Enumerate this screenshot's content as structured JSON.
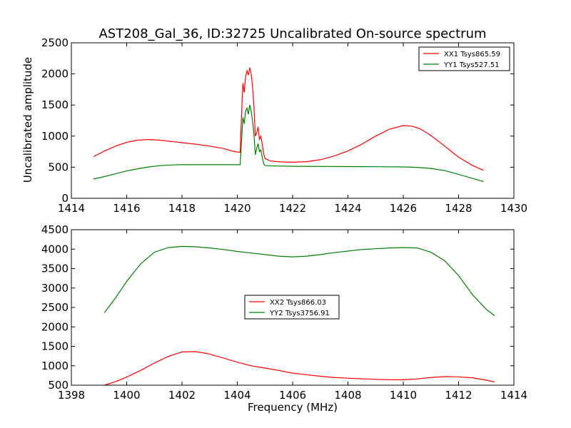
{
  "title": "AST208_Gal_36, ID:32725 Uncalibrated On-source spectrum",
  "ylabel": "Uncalibrated amplitude",
  "xlabel": "Frequency (MHz)",
  "colors": {
    "red": "#ff0000",
    "green": "#008000"
  },
  "chart_data": [
    {
      "type": "line",
      "title": "AST208_Gal_36, ID:32725 Uncalibrated On-source spectrum",
      "xlabel": "",
      "ylabel": "Uncalibrated amplitude",
      "xlim": [
        1414,
        1430
      ],
      "ylim": [
        0,
        2500
      ],
      "xticks": [
        1414,
        1416,
        1418,
        1420,
        1422,
        1424,
        1426,
        1428,
        1430
      ],
      "yticks": [
        0,
        500,
        1000,
        1500,
        2000,
        2500
      ],
      "grid": false,
      "legend": "top-right",
      "series": [
        {
          "name": "XX1 Tsys865.59",
          "color": "#ff0000",
          "x": [
            1414.8,
            1415.2,
            1415.6,
            1416.0,
            1416.4,
            1416.8,
            1417.2,
            1417.6,
            1418.0,
            1418.5,
            1419.0,
            1419.5,
            1419.9,
            1420.1,
            1420.15,
            1420.2,
            1420.25,
            1420.3,
            1420.35,
            1420.4,
            1420.45,
            1420.5,
            1420.55,
            1420.6,
            1420.65,
            1420.7,
            1420.75,
            1420.8,
            1420.85,
            1420.9,
            1420.95,
            1421.0,
            1421.2,
            1421.6,
            1422.0,
            1422.5,
            1423.0,
            1423.5,
            1424.0,
            1424.5,
            1425.0,
            1425.5,
            1426.0,
            1426.3,
            1426.6,
            1427.0,
            1427.5,
            1428.0,
            1428.5,
            1428.9
          ],
          "y": [
            670,
            760,
            840,
            900,
            935,
            945,
            935,
            915,
            895,
            870,
            840,
            800,
            750,
            740,
            1300,
            1850,
            1700,
            1950,
            2050,
            1980,
            2100,
            2000,
            1800,
            1500,
            1000,
            1050,
            1150,
            950,
            1000,
            880,
            720,
            640,
            600,
            585,
            580,
            590,
            620,
            680,
            760,
            870,
            1000,
            1110,
            1170,
            1160,
            1120,
            1010,
            840,
            660,
            530,
            450
          ]
        },
        {
          "name": "YY1 Tsys527.51",
          "color": "#008000",
          "x": [
            1414.8,
            1415.2,
            1415.6,
            1416.0,
            1416.4,
            1416.8,
            1417.2,
            1417.6,
            1418.0,
            1418.5,
            1419.0,
            1419.5,
            1419.9,
            1420.1,
            1420.15,
            1420.2,
            1420.25,
            1420.3,
            1420.35,
            1420.4,
            1420.45,
            1420.5,
            1420.55,
            1420.6,
            1420.65,
            1420.7,
            1420.75,
            1420.8,
            1420.85,
            1420.9,
            1420.95,
            1421.0,
            1421.4,
            1422.0,
            1423.0,
            1424.0,
            1425.0,
            1426.0,
            1426.5,
            1427.0,
            1427.5,
            1428.0,
            1428.5,
            1428.9
          ],
          "y": [
            310,
            350,
            395,
            440,
            475,
            505,
            525,
            535,
            540,
            540,
            540,
            540,
            540,
            540,
            900,
            1300,
            1200,
            1400,
            1450,
            1350,
            1500,
            1400,
            1250,
            1050,
            700,
            800,
            880,
            750,
            780,
            660,
            560,
            525,
            520,
            515,
            512,
            510,
            508,
            505,
            498,
            480,
            445,
            385,
            320,
            270
          ]
        }
      ]
    },
    {
      "type": "line",
      "title": "",
      "xlabel": "Frequency (MHz)",
      "ylabel": "",
      "xlim": [
        1398,
        1414
      ],
      "ylim": [
        500,
        4500
      ],
      "xticks": [
        1398,
        1400,
        1402,
        1404,
        1406,
        1408,
        1410,
        1412,
        1414
      ],
      "yticks": [
        500,
        1000,
        1500,
        2000,
        2500,
        3000,
        3500,
        4000,
        4500
      ],
      "grid": false,
      "legend": "center",
      "series": [
        {
          "name": "XX2 Tsys866.03",
          "color": "#ff0000",
          "x": [
            1399.2,
            1399.6,
            1400.0,
            1400.5,
            1401.0,
            1401.5,
            1402.0,
            1402.5,
            1403.0,
            1403.5,
            1404.0,
            1404.5,
            1405.0,
            1405.5,
            1406.0,
            1406.5,
            1407.0,
            1407.5,
            1408.0,
            1408.5,
            1409.0,
            1409.5,
            1410.0,
            1410.5,
            1411.0,
            1411.5,
            1412.0,
            1412.5,
            1413.0,
            1413.3
          ],
          "y": [
            500,
            590,
            710,
            880,
            1070,
            1240,
            1355,
            1365,
            1300,
            1200,
            1090,
            1000,
            940,
            880,
            810,
            770,
            730,
            700,
            680,
            665,
            650,
            640,
            640,
            660,
            700,
            720,
            715,
            690,
            630,
            580
          ]
        },
        {
          "name": "YY2 Tsys3756.91",
          "color": "#008000",
          "x": [
            1399.2,
            1399.6,
            1400.0,
            1400.5,
            1401.0,
            1401.5,
            1402.0,
            1402.5,
            1403.0,
            1403.5,
            1404.0,
            1404.5,
            1405.0,
            1405.5,
            1406.0,
            1406.5,
            1407.0,
            1407.5,
            1408.0,
            1408.5,
            1409.0,
            1409.5,
            1410.0,
            1410.5,
            1411.0,
            1411.5,
            1412.0,
            1412.5,
            1413.0,
            1413.3
          ],
          "y": [
            2370,
            2750,
            3170,
            3620,
            3920,
            4040,
            4070,
            4060,
            4030,
            3990,
            3940,
            3900,
            3860,
            3820,
            3800,
            3820,
            3860,
            3910,
            3950,
            3990,
            4010,
            4030,
            4040,
            4030,
            3920,
            3700,
            3320,
            2830,
            2450,
            2290
          ]
        }
      ]
    }
  ]
}
